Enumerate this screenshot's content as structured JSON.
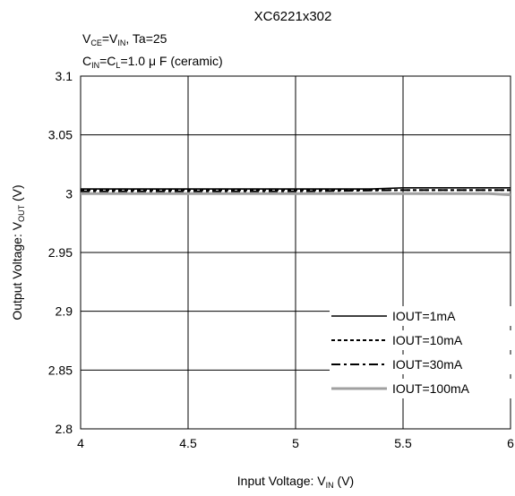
{
  "chart_data": {
    "type": "line",
    "title": "XC6221x302",
    "conditions": {
      "line1": {
        "main_a": "V",
        "sub_a": "CE",
        "mid": "=V",
        "sub_b": "IN",
        "rest": ", Ta=25"
      },
      "line2": {
        "main_a": "C",
        "sub_a": "IN",
        "mid": "=C",
        "sub_b": "L",
        "rest": "=1.0 μ F (ceramic)"
      }
    },
    "xlabel": {
      "main": "Input Voltage: V",
      "sub": "IN",
      "rest": " (V)"
    },
    "ylabel": {
      "main": "Output Voltage: V",
      "sub": "OUT",
      "rest": " (V)"
    },
    "xlim": [
      4,
      6
    ],
    "ylim": [
      2.8,
      3.1
    ],
    "x_ticks": [
      4,
      4.5,
      5,
      5.5,
      6
    ],
    "x_tick_labels": [
      "4",
      "4.5",
      "5",
      "5.5",
      "6"
    ],
    "y_ticks": [
      2.8,
      2.85,
      2.9,
      2.95,
      3,
      3.05,
      3.1
    ],
    "y_tick_labels": [
      "2.8",
      "2.85",
      "2.9",
      "2.95",
      "3",
      "3.05",
      "3.1"
    ],
    "grid": true,
    "legend_position": "bottom-right",
    "series": [
      {
        "name": "IOUT=1mA",
        "style": "solid",
        "color": "#000000",
        "x": [
          4,
          4.5,
          5,
          5.35,
          5.5,
          6
        ],
        "y": [
          3.004,
          3.004,
          3.004,
          3.004,
          3.005,
          3.005
        ]
      },
      {
        "name": "IOUT=10mA",
        "style": "dotted",
        "color": "#000000",
        "x": [
          4,
          4.5,
          5,
          5.5,
          6
        ],
        "y": [
          3.003,
          3.003,
          3.003,
          3.003,
          3.003
        ]
      },
      {
        "name": "IOUT=30mA",
        "style": "dashdot",
        "color": "#000000",
        "x": [
          4,
          4.5,
          5,
          5.5,
          6
        ],
        "y": [
          3.002,
          3.002,
          3.002,
          3.003,
          3.003
        ]
      },
      {
        "name": "IOUT=100mA",
        "style": "solid",
        "color": "#a0a0a0",
        "x": [
          4,
          4.5,
          5,
          5.5,
          5.9,
          6
        ],
        "y": [
          3.0,
          3.0,
          3.0,
          3.0,
          3.0,
          2.999
        ]
      }
    ]
  }
}
